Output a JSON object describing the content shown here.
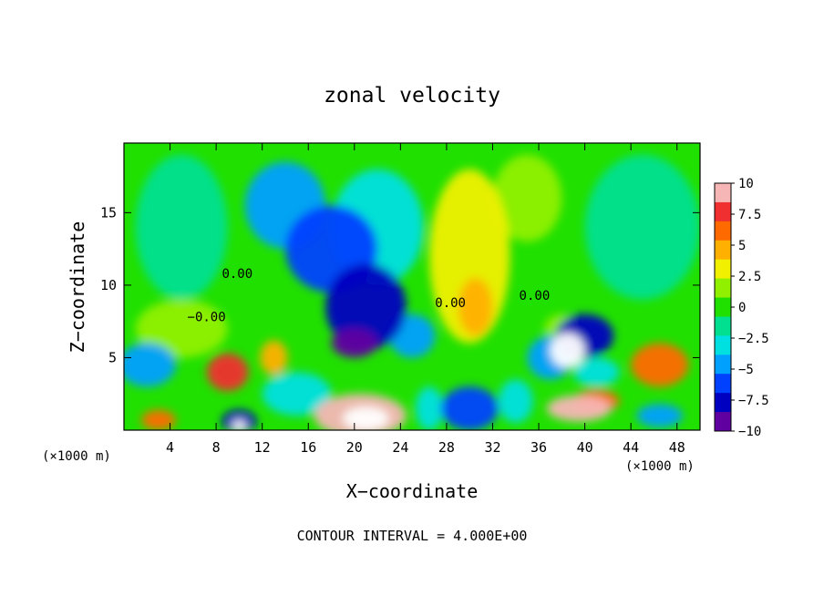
{
  "chart_data": {
    "type": "heatmap",
    "title": "zonal velocity",
    "xlabel": "X−coordinate",
    "ylabel": "Z−coordinate",
    "x_unit_label_left": "(×1000 m)",
    "x_unit_label_right": "(×1000 m)",
    "contour_note": "CONTOUR INTERVAL = 4.000E+00",
    "xlim": [
      0,
      50
    ],
    "ylim": [
      0,
      19.8
    ],
    "x_ticks": [
      4,
      8,
      12,
      16,
      20,
      24,
      28,
      32,
      36,
      40,
      44,
      48
    ],
    "y_ticks": [
      5,
      10,
      15
    ],
    "colorbar": {
      "range": [
        -10,
        10
      ],
      "ticks": [
        "10",
        "7.5",
        "5",
        "2.5",
        "0",
        "−2.5",
        "−5",
        "−7.5",
        "−10"
      ],
      "colors": [
        "#f7b6b6",
        "#f03030",
        "#ff6a00",
        "#ffb000",
        "#f0f000",
        "#90f000",
        "#20e000",
        "#00e090",
        "#00e0e0",
        "#00a0ff",
        "#0040ff",
        "#0000c0",
        "#6000a0"
      ]
    },
    "contour_labels": [
      {
        "text": "0.00",
        "x": 8.5,
        "y": 10.5
      },
      {
        "text": "−0.00",
        "x": 5.5,
        "y": 7.5
      },
      {
        "text": "0.00",
        "x": 27,
        "y": 8.5
      },
      {
        "text": "0.00",
        "x": 34.3,
        "y": 9.0
      }
    ],
    "features": [
      {
        "x": 14,
        "y": 15.5,
        "rx": 3.5,
        "ry": 3.0,
        "v": -4.5
      },
      {
        "x": 18,
        "y": 12.5,
        "rx": 4.0,
        "ry": 3.0,
        "v": -6.0
      },
      {
        "x": 21,
        "y": 8.5,
        "rx": 3.5,
        "ry": 3.0,
        "v": -7.5
      },
      {
        "x": 20,
        "y": 6.0,
        "rx": 2.0,
        "ry": 1.0,
        "v": -9.0
      },
      {
        "x": 22,
        "y": 14.0,
        "rx": 4.0,
        "ry": 4.0,
        "v": -3.0
      },
      {
        "x": 25,
        "y": 6.5,
        "rx": 2.0,
        "ry": 1.5,
        "v": -5.0
      },
      {
        "x": 30,
        "y": 12.0,
        "rx": 3.5,
        "ry": 6.0,
        "v": 2.5
      },
      {
        "x": 30.5,
        "y": 8.5,
        "rx": 1.5,
        "ry": 2.0,
        "v": 5.0
      },
      {
        "x": 38.5,
        "y": 5.5,
        "rx": 1.5,
        "ry": 1.2,
        "v": -10.0
      },
      {
        "x": 40,
        "y": 6.5,
        "rx": 2.5,
        "ry": 1.5,
        "v": -7.0
      },
      {
        "x": 38,
        "y": 7.0,
        "rx": 1.5,
        "ry": 1.0,
        "v": 1.0
      },
      {
        "x": 37,
        "y": 5.0,
        "rx": 2.0,
        "ry": 1.5,
        "v": -5.0
      },
      {
        "x": 41,
        "y": 4.0,
        "rx": 2.0,
        "ry": 1.0,
        "v": -3.0
      },
      {
        "x": 2,
        "y": 4.5,
        "rx": 2.5,
        "ry": 1.5,
        "v": -4.0
      },
      {
        "x": 9,
        "y": 4.0,
        "rx": 1.8,
        "ry": 1.3,
        "v": 8.0
      },
      {
        "x": 13,
        "y": 5.0,
        "rx": 1.2,
        "ry": 1.2,
        "v": 5.0
      },
      {
        "x": 20.5,
        "y": 1.0,
        "rx": 4.0,
        "ry": 1.5,
        "v": 8.5
      },
      {
        "x": 21,
        "y": 0.8,
        "rx": 2.0,
        "ry": 0.8,
        "v": 11.0
      },
      {
        "x": 39.5,
        "y": 1.5,
        "rx": 2.8,
        "ry": 0.9,
        "v": 9.5
      },
      {
        "x": 41,
        "y": 2.0,
        "rx": 2.0,
        "ry": 0.8,
        "v": 6.0
      },
      {
        "x": 46.5,
        "y": 4.5,
        "rx": 2.5,
        "ry": 1.5,
        "v": 6.0
      },
      {
        "x": 46.5,
        "y": 1.0,
        "rx": 2.0,
        "ry": 0.8,
        "v": -5.0
      },
      {
        "x": 3,
        "y": 0.7,
        "rx": 1.5,
        "ry": 0.7,
        "v": 6.0
      },
      {
        "x": 10,
        "y": 0.6,
        "rx": 1.5,
        "ry": 0.8,
        "v": -7.0
      },
      {
        "x": 10,
        "y": 0.3,
        "rx": 0.6,
        "ry": 0.4,
        "v": 11.0
      },
      {
        "x": 30,
        "y": 1.5,
        "rx": 2.5,
        "ry": 1.5,
        "v": -6.0
      },
      {
        "x": 26.5,
        "y": 1.5,
        "rx": 1.2,
        "ry": 1.5,
        "v": -3.0
      },
      {
        "x": 34,
        "y": 2.0,
        "rx": 1.5,
        "ry": 1.5,
        "v": -3.0
      },
      {
        "x": 5,
        "y": 14.0,
        "rx": 4.0,
        "ry": 5.0,
        "v": -1.5
      },
      {
        "x": 45,
        "y": 14.0,
        "rx": 5.0,
        "ry": 5.0,
        "v": -1.0
      },
      {
        "x": 35,
        "y": 16.0,
        "rx": 3.0,
        "ry": 3.0,
        "v": 1.5
      },
      {
        "x": 5,
        "y": 7.0,
        "rx": 4.0,
        "ry": 2.0,
        "v": 1.5
      },
      {
        "x": 15,
        "y": 2.5,
        "rx": 3.0,
        "ry": 1.5,
        "v": -2.5
      }
    ],
    "grid": false,
    "legend": "colorbar-right"
  }
}
